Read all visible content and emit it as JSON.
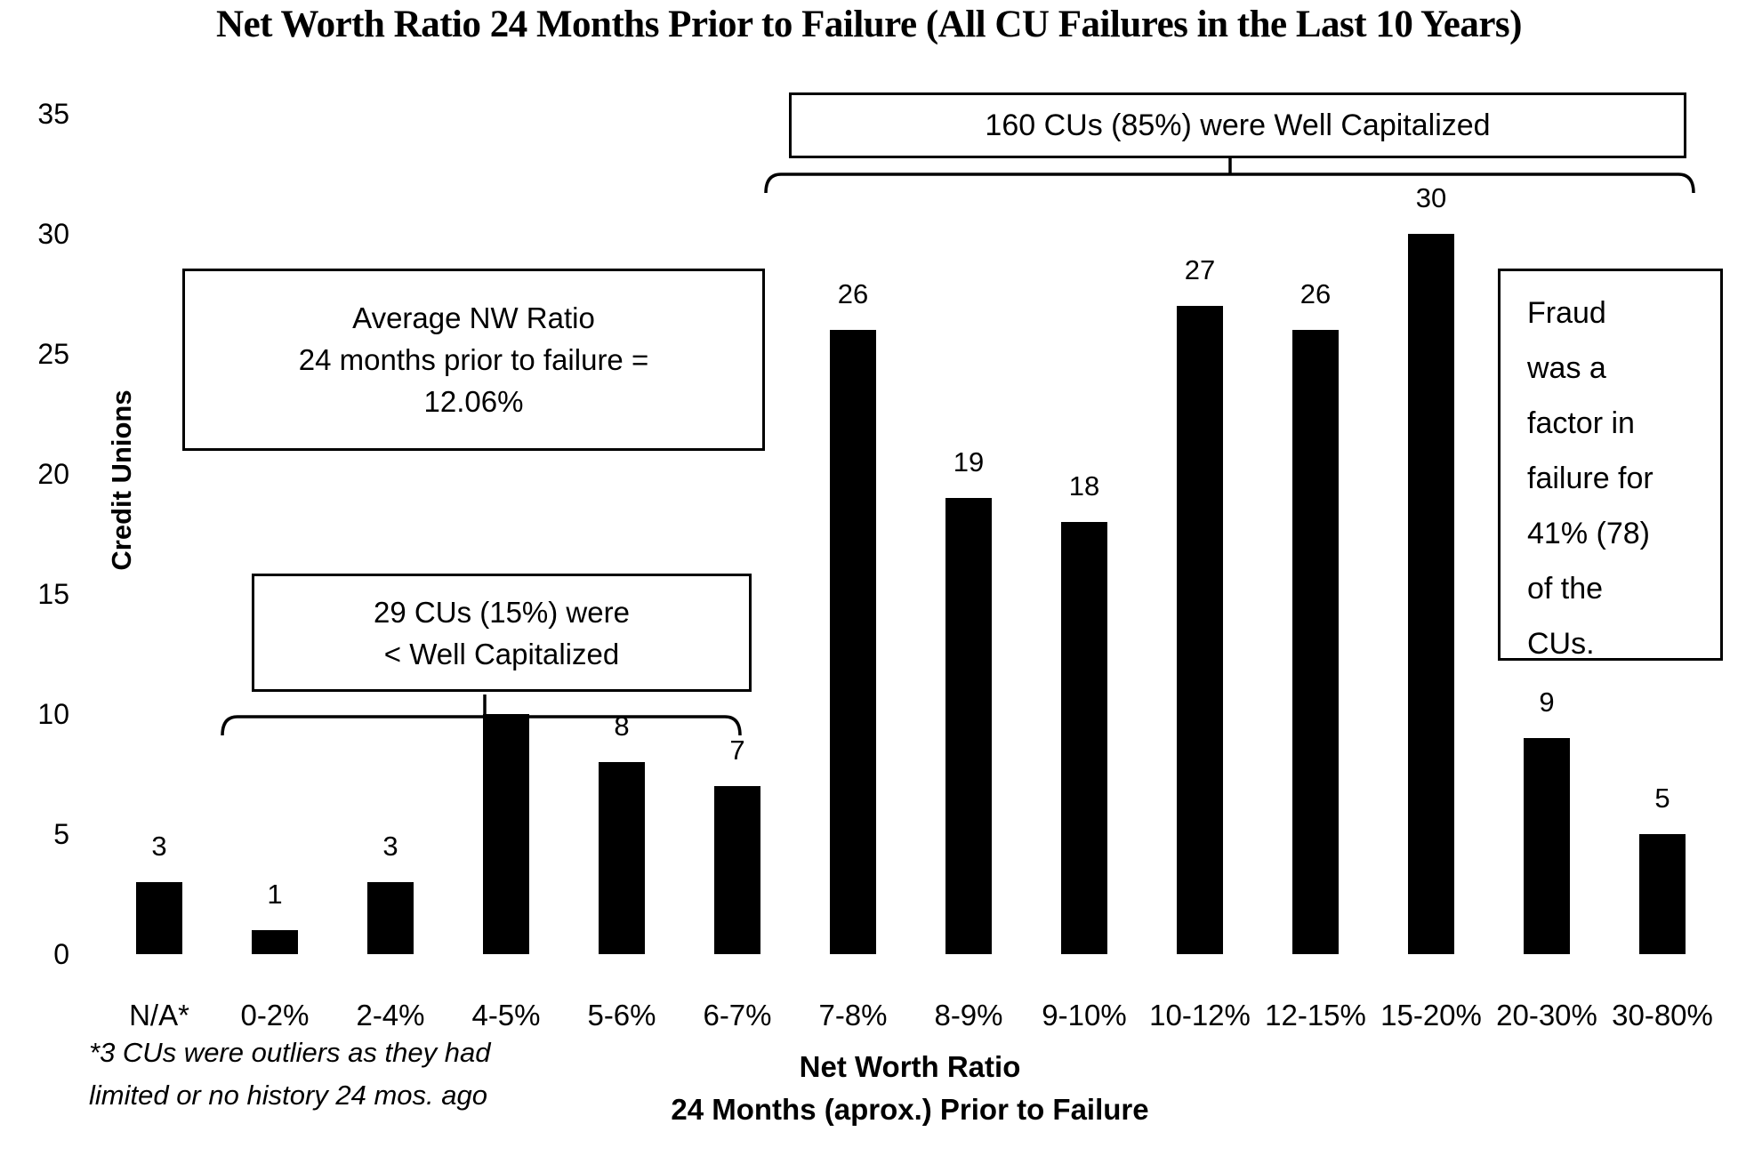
{
  "title": "Net Worth Ratio 24 Months Prior to Failure (All CU Failures in the Last 10 Years)",
  "annotations": {
    "well_capitalized": "160 CUs (85%) were Well Capitalized",
    "average": [
      "Average NW Ratio",
      "24 months prior to failure =",
      "12.06%"
    ],
    "less_capitalized": [
      "29 CUs (15%) were",
      "< Well Capitalized"
    ],
    "fraud": [
      "Fraud",
      "was a",
      "factor in",
      "failure for",
      "41% (78)",
      "of the",
      "CUs."
    ]
  },
  "y_axis": {
    "label": "Credit Unions",
    "ticks": [
      0,
      5,
      10,
      15,
      20,
      25,
      30,
      35
    ]
  },
  "x_axis": {
    "title_line1": "Net Worth Ratio",
    "title_line2": "24 Months (aprox.) Prior to Failure"
  },
  "footnote": {
    "line1": "*3 CUs were outliers as they had",
    "line2": "limited or no history 24 mos. ago"
  },
  "colors": {
    "bar": "#000000",
    "text": "#000000",
    "background": "#ffffff"
  },
  "chart_data": {
    "type": "bar",
    "title": "Net Worth Ratio 24 Months Prior to Failure (All CU Failures in the Last 10 Years)",
    "categories": [
      "N/A*",
      "0-2%",
      "2-4%",
      "4-5%",
      "5-6%",
      "6-7%",
      "7-8%",
      "8-9%",
      "9-10%",
      "10-12%",
      "12-15%",
      "15-20%",
      "20-30%",
      "30-80%"
    ],
    "values": [
      3,
      1,
      3,
      10,
      8,
      7,
      26,
      19,
      18,
      27,
      26,
      30,
      9,
      5
    ],
    "data_labels": [
      "3",
      "1",
      "3",
      null,
      "8",
      "7",
      "26",
      "19",
      "18",
      "27",
      "26",
      "30",
      "9",
      "5"
    ],
    "xlabel": "Net Worth Ratio 24 Months (aprox.) Prior to Failure",
    "ylabel": "Credit Unions",
    "ylim": [
      0,
      35
    ],
    "ytick_step": 5,
    "grid": false,
    "legend": false,
    "bar_color": "#000000"
  }
}
